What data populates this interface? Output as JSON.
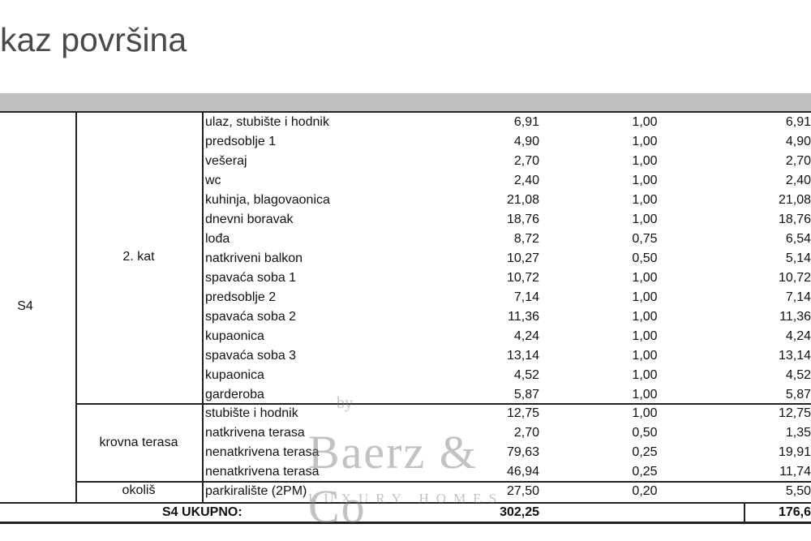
{
  "title": "kaz površina",
  "unit": "S4",
  "groups": [
    {
      "label": "2. kat"
    },
    {
      "label": "krovna terasa"
    },
    {
      "label": "okoliš"
    }
  ],
  "rows": [
    {
      "name": "ulaz, stubište i hodnik",
      "area": "6,91",
      "coef": "1,00",
      "net": "6,91"
    },
    {
      "name": "predsoblje 1",
      "area": "4,90",
      "coef": "1,00",
      "net": "4,90"
    },
    {
      "name": "vešeraj",
      "area": "2,70",
      "coef": "1,00",
      "net": "2,70"
    },
    {
      "name": "wc",
      "area": "2,40",
      "coef": "1,00",
      "net": "2,40"
    },
    {
      "name": "kuhinja, blagovaonica",
      "area": "21,08",
      "coef": "1,00",
      "net": "21,08"
    },
    {
      "name": "dnevni boravak",
      "area": "18,76",
      "coef": "1,00",
      "net": "18,76"
    },
    {
      "name": "lođa",
      "area": "8,72",
      "coef": "0,75",
      "net": "6,54"
    },
    {
      "name": "natkriveni balkon",
      "area": "10,27",
      "coef": "0,50",
      "net": "5,14"
    },
    {
      "name": "spavaća soba 1",
      "area": "10,72",
      "coef": "1,00",
      "net": "10,72"
    },
    {
      "name": "predsoblje 2",
      "area": "7,14",
      "coef": "1,00",
      "net": "7,14"
    },
    {
      "name": "spavaća soba 2",
      "area": "11,36",
      "coef": "1,00",
      "net": "11,36"
    },
    {
      "name": "kupaonica",
      "area": "4,24",
      "coef": "1,00",
      "net": "4,24"
    },
    {
      "name": "spavaća soba 3",
      "area": "13,14",
      "coef": "1,00",
      "net": "13,14"
    },
    {
      "name": "kupaonica",
      "area": "4,52",
      "coef": "1,00",
      "net": "4,52"
    },
    {
      "name": "garderoba",
      "area": "5,87",
      "coef": "1,00",
      "net": "5,87"
    },
    {
      "name": "stubište i hodnik",
      "area": "12,75",
      "coef": "1,00",
      "net": "12,75"
    },
    {
      "name": "natkrivena terasa",
      "area": "2,70",
      "coef": "0,50",
      "net": "1,35"
    },
    {
      "name": "nenatkrivena terasa",
      "area": "79,63",
      "coef": "0,25",
      "net": "19,91"
    },
    {
      "name": "nenatkrivena terasa",
      "area": "46,94",
      "coef": "0,25",
      "net": "11,74"
    },
    {
      "name": "parkiralište (2PM)",
      "area": "27,50",
      "coef": "0,20",
      "net": "5,50"
    }
  ],
  "total": {
    "label": "S4 UKUPNO:",
    "area": "302,25",
    "net": "176,6"
  },
  "watermark": {
    "by": "by",
    "brand": "Baerz & Co",
    "tagline": "LUXURY HOMES"
  }
}
